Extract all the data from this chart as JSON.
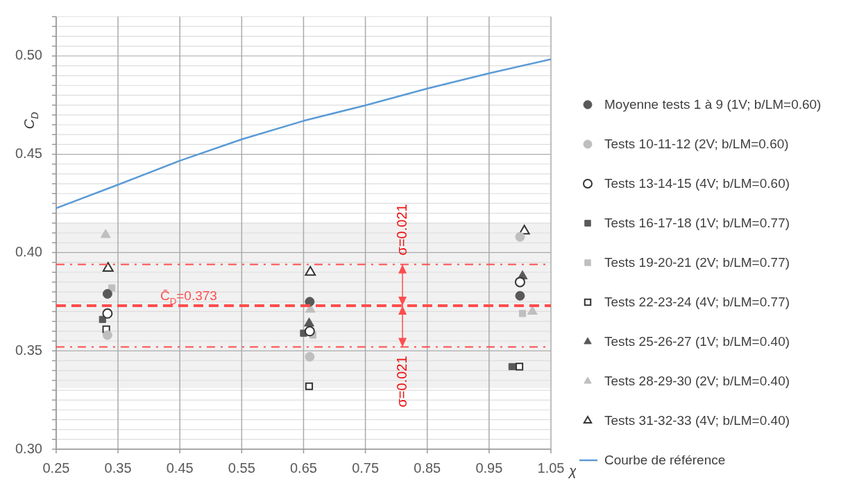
{
  "chart_data": {
    "type": "scatter",
    "ylabel": "C$_{D}$",
    "xlabel": "χ",
    "xlim": [
      0.25,
      1.05
    ],
    "xticks": [
      0.25,
      0.35,
      0.45,
      0.55,
      0.65,
      0.75,
      0.85,
      0.95,
      1.05
    ],
    "ylim": [
      0.3,
      0.52
    ],
    "yticks": [
      {
        "value": 0.3,
        "label": "0.30"
      },
      {
        "value": 0.305,
        "label": null
      },
      {
        "value": 0.31,
        "label": null
      },
      {
        "value": 0.315,
        "label": null
      },
      {
        "value": 0.32,
        "label": null
      },
      {
        "value": 0.325,
        "label": null
      },
      {
        "value": 0.33,
        "label": null
      },
      {
        "value": 0.335,
        "label": null
      },
      {
        "value": 0.34,
        "label": null
      },
      {
        "value": 0.345,
        "label": null
      },
      {
        "value": 0.35,
        "label": "0.35"
      },
      {
        "value": 0.355,
        "label": null
      },
      {
        "value": 0.36,
        "label": null
      },
      {
        "value": 0.365,
        "label": null
      },
      {
        "value": 0.37,
        "label": null
      },
      {
        "value": 0.375,
        "label": null
      },
      {
        "value": 0.38,
        "label": null
      },
      {
        "value": 0.385,
        "label": null
      },
      {
        "value": 0.39,
        "label": null
      },
      {
        "value": 0.395,
        "label": null
      },
      {
        "value": 0.4,
        "label": "0.40"
      },
      {
        "value": 0.405,
        "label": null
      },
      {
        "value": 0.41,
        "label": null
      },
      {
        "value": 0.415,
        "label": null
      },
      {
        "value": 0.42,
        "label": null
      },
      {
        "value": 0.425,
        "label": null
      },
      {
        "value": 0.43,
        "label": null
      },
      {
        "value": 0.435,
        "label": null
      },
      {
        "value": 0.44,
        "label": null
      },
      {
        "value": 0.445,
        "label": null
      },
      {
        "value": 0.45,
        "label": "0.45"
      },
      {
        "value": 0.455,
        "label": null
      },
      {
        "value": 0.46,
        "label": null
      },
      {
        "value": 0.465,
        "label": null
      },
      {
        "value": 0.47,
        "label": null
      },
      {
        "value": 0.475,
        "label": null
      },
      {
        "value": 0.48,
        "label": null
      },
      {
        "value": 0.485,
        "label": null
      },
      {
        "value": 0.49,
        "label": null
      },
      {
        "value": 0.495,
        "label": null
      },
      {
        "value": 0.5,
        "label": "0.50"
      },
      {
        "value": 0.505,
        "label": null
      },
      {
        "value": 0.51,
        "label": null
      },
      {
        "value": 0.515,
        "label": null
      },
      {
        "value": 0.52,
        "label": null
      }
    ],
    "grid": true,
    "legend": "right",
    "series": [
      {
        "name": "Moyenne tests 1 à 9 (1V; b/LM=0.60)",
        "color": "#595959",
        "marker": "circle",
        "x": [
          0.333,
          0.66,
          1.0
        ],
        "values": [
          0.379,
          0.375,
          0.378
        ]
      },
      {
        "name": "Tests 10-11-12 (2V; b/LM=0.60)",
        "color": "#bfbfbf",
        "marker": "circle",
        "x": [
          0.333,
          0.66,
          1.0
        ],
        "values": [
          0.358,
          0.347,
          0.408
        ]
      },
      {
        "name": "Tests 13-14-15 (4V; b/LM=0.60)",
        "color": "#ffffff",
        "marker": "circle",
        "x": [
          0.333,
          0.66,
          1.0
        ],
        "values": [
          0.369,
          0.36,
          0.385
        ]
      },
      {
        "name": "Tests 16-17-18 (1V; b/LM=0.77)",
        "color": "#595959",
        "marker": "square",
        "x": [
          0.325,
          0.65,
          0.987
        ],
        "values": [
          0.366,
          0.359,
          0.342
        ]
      },
      {
        "name": "Tests 19-20-21 (2V; b/LM=0.77)",
        "color": "#bfbfbf",
        "marker": "square",
        "x": [
          0.34,
          0.665,
          1.004
        ],
        "values": [
          0.382,
          0.358,
          0.369
        ]
      },
      {
        "name": "Tests 22-23-24 (4V; b/LM=0.77)",
        "color": "#ffffff",
        "marker": "square",
        "x": [
          0.331,
          0.659,
          0.999
        ],
        "values": [
          0.361,
          0.332,
          0.342
        ]
      },
      {
        "name": "Tests 25-26-27 (1V; b/LM=0.40)",
        "color": "#595959",
        "marker": "triangle",
        "x": [
          0.659,
          1.004
        ],
        "values": [
          0.364,
          0.388
        ]
      },
      {
        "name": "Tests 28-29-30 (2V; b/LM=0.40)",
        "color": "#bfbfbf",
        "marker": "triangle",
        "x": [
          0.33,
          0.661,
          1.02
        ],
        "values": [
          0.409,
          0.371,
          0.37
        ]
      },
      {
        "name": "Tests 31-32-33 (4V; b/LM=0.40)",
        "color": "#ffffff",
        "marker": "triangle",
        "x": [
          0.334,
          0.661,
          1.007
        ],
        "values": [
          0.392,
          0.39,
          0.411
        ]
      },
      {
        "name": "Courbe de référence",
        "type": "line",
        "color": "#5b9bd5",
        "marker": "none",
        "x": [
          0.25,
          0.35,
          0.45,
          0.55,
          0.65,
          0.75,
          0.85,
          0.95,
          1.05
        ],
        "values": [
          0.4226,
          0.4345,
          0.4467,
          0.4576,
          0.467,
          0.4749,
          0.4834,
          0.4912,
          0.4983
        ]
      }
    ],
    "ref_lines": [
      {
        "axis": "y",
        "value": 0.373,
        "label": "C̄$_{D}$=0.373",
        "color": "#ff4d4d",
        "line_style": "dashed"
      },
      {
        "axis": "y",
        "value": 0.394,
        "label": null,
        "color": "#ff4d4d",
        "line_style": "dashdot"
      },
      {
        "axis": "y",
        "value": 0.352,
        "label": null,
        "color": "#ff4d4d",
        "line_style": "dashdot"
      }
    ],
    "bands": [
      {
        "axis": "y",
        "from": 0.331,
        "to": 0.415,
        "label": null,
        "color": "#eeeeee"
      }
    ],
    "annotations": [
      "σ=0.021",
      "σ=0.021"
    ]
  }
}
